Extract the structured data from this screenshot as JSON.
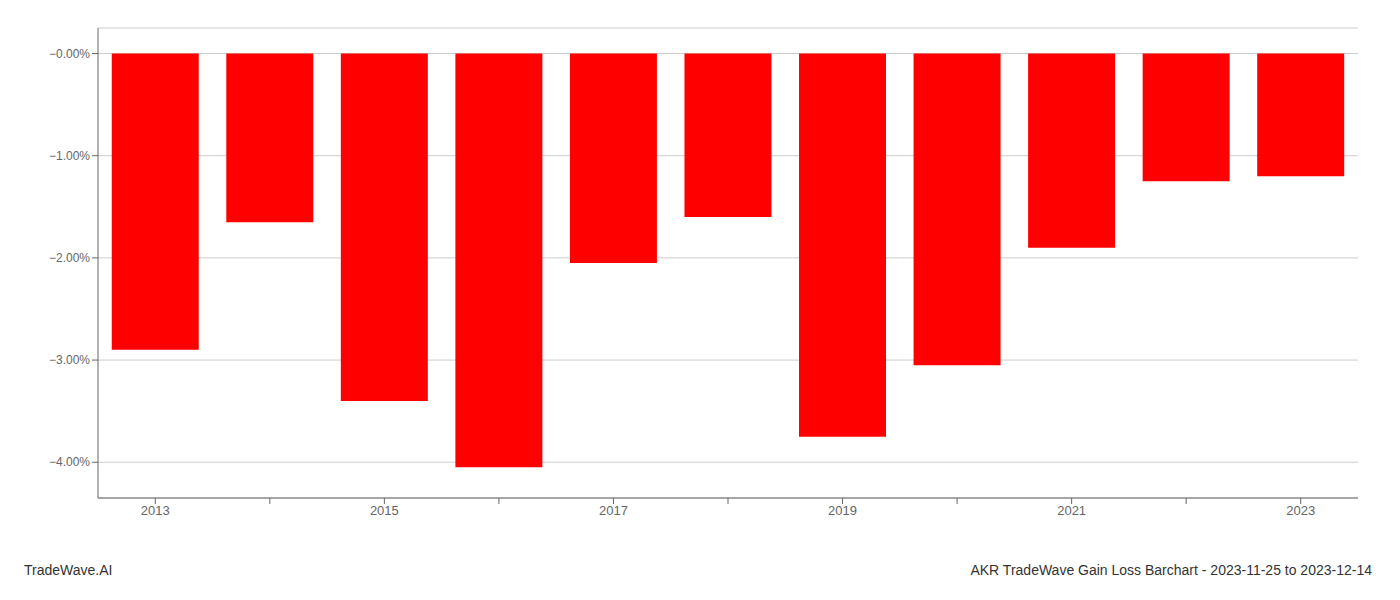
{
  "chart_data": {
    "type": "bar",
    "title": "AKR TradeWave Gain Loss Barchart - 2023-11-25 to 2023-12-14",
    "annotations": [
      "TradeWave.AI"
    ],
    "categories": [
      "2013",
      null,
      "2015",
      null,
      "2017",
      null,
      "2019",
      null,
      "2021",
      null,
      "2023"
    ],
    "values": [
      -2.9,
      -1.65,
      -3.4,
      -4.05,
      -2.05,
      -1.6,
      -3.75,
      -3.05,
      -1.9,
      -1.25,
      -1.2
    ],
    "color": "#ff0000",
    "ylim": [
      -4.35,
      0.25
    ],
    "yticks": [
      {
        "value": 0.0,
        "label": "−0.00%"
      },
      {
        "value": -1.0,
        "label": "−1.00%"
      },
      {
        "value": -2.0,
        "label": "−2.00%"
      },
      {
        "value": -3.0,
        "label": "−3.00%"
      },
      {
        "value": -4.0,
        "label": "−4.00%"
      }
    ],
    "grid": true
  }
}
